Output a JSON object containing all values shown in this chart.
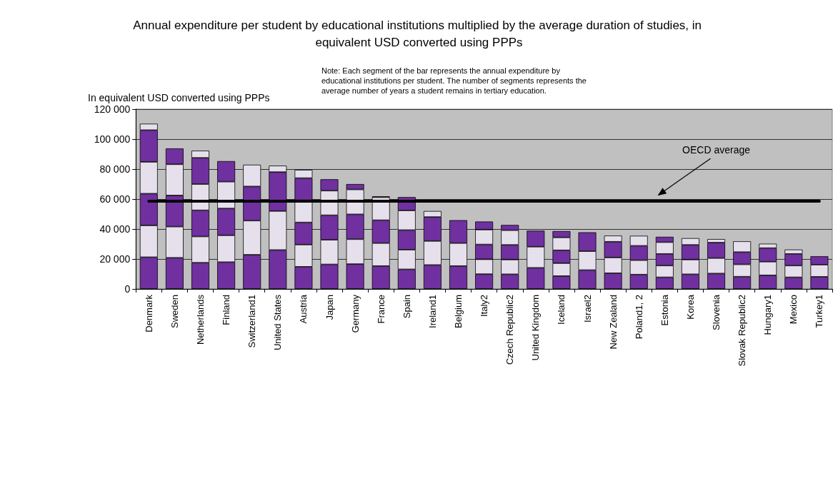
{
  "chart_data": {
    "type": "bar",
    "stacked": true,
    "title": "Annual expenditure per student by educational institutions multiplied by the average duration of studies, in equivalent USD converted using PPPs",
    "ylabel": "In equivalent USD converted using PPPs",
    "annotations": [
      "Note: Each segment of the bar represents the annual expenditure by educational institutions per student. The number of segments represents the average number of years a student remains in tertiary education."
    ],
    "categories": [
      "Denmark",
      "Sweden",
      "Netherlands",
      "Finland",
      "Switzerland1",
      "United States",
      "Austria",
      "Japan",
      "Germany",
      "France",
      "Spain",
      "Ireland1",
      "Belgium",
      "Italy2",
      "Czech Republic2",
      "United Kingdom",
      "Iceland",
      "Israel2",
      "New Zealand",
      "Poland1, 2",
      "Estonia",
      "Korea",
      "Slovenia",
      "Slovak Republic2",
      "Hungary1",
      "Mexico",
      "Turkey1"
    ],
    "series": [
      {
        "color": "#7030a0",
        "values": [
          21200,
          20800,
          17500,
          17900,
          22800,
          26000,
          14800,
          16400,
          16600,
          15300,
          13100,
          16000,
          15300,
          9900,
          9800,
          14100,
          8600,
          12600,
          10500,
          9600,
          7800,
          9800,
          10300,
          8200,
          9100,
          7800,
          8100
        ]
      },
      {
        "color": "#e6e0ec",
        "values": [
          21200,
          20800,
          17500,
          17900,
          22800,
          26000,
          14800,
          16400,
          16600,
          15300,
          13100,
          16000,
          15300,
          9900,
          9800,
          14100,
          8600,
          12600,
          10500,
          9600,
          7800,
          9800,
          10300,
          8200,
          9100,
          7800,
          8100
        ]
      },
      {
        "color": "#7030a0",
        "values": [
          21200,
          20800,
          17500,
          17900,
          22800,
          26000,
          14800,
          16400,
          16600,
          15300,
          13100,
          16000,
          15300,
          9900,
          9800,
          10700,
          8600,
          12600,
          10500,
          9600,
          7800,
          9800,
          10300,
          8200,
          9100,
          7800,
          5600
        ]
      },
      {
        "color": "#e6e0ec",
        "values": [
          21200,
          20800,
          17500,
          17900,
          14500,
          4300,
          14800,
          16400,
          16600,
          15300,
          13100,
          4000,
          null,
          9900,
          9800,
          null,
          8600,
          null,
          4100,
          6700,
          7800,
          4500,
          2400,
          7200,
          2900,
          2900,
          null
        ]
      },
      {
        "color": "#7030a0",
        "values": [
          21200,
          10600,
          17500,
          13700,
          null,
          null,
          14800,
          7600,
          3600,
          600,
          8900,
          null,
          null,
          5400,
          3500,
          null,
          4200,
          null,
          null,
          null,
          3600,
          null,
          null,
          null,
          null,
          null,
          null
        ]
      },
      {
        "color": "#e6e0ec",
        "values": [
          4300,
          null,
          4800,
          null,
          null,
          null,
          5500,
          null,
          null,
          null,
          null,
          null,
          null,
          null,
          null,
          null,
          null,
          null,
          null,
          null,
          null,
          null,
          null,
          null,
          null,
          null,
          null
        ]
      }
    ],
    "ylim": [
      0,
      120000
    ],
    "yticks": [
      {
        "value": 0,
        "label": "0"
      },
      {
        "value": 20000,
        "label": "20 000"
      },
      {
        "value": 40000,
        "label": "40 000"
      },
      {
        "value": 60000,
        "label": "60 000"
      },
      {
        "value": 80000,
        "label": "80 000"
      },
      {
        "value": 100000,
        "label": "100 000"
      },
      {
        "value": 120000,
        "label": "120 000"
      }
    ],
    "grid": "y",
    "ref_lines": [
      {
        "axis": "y",
        "value": 58500,
        "label": "OECD average",
        "color": "#000000"
      }
    ]
  }
}
